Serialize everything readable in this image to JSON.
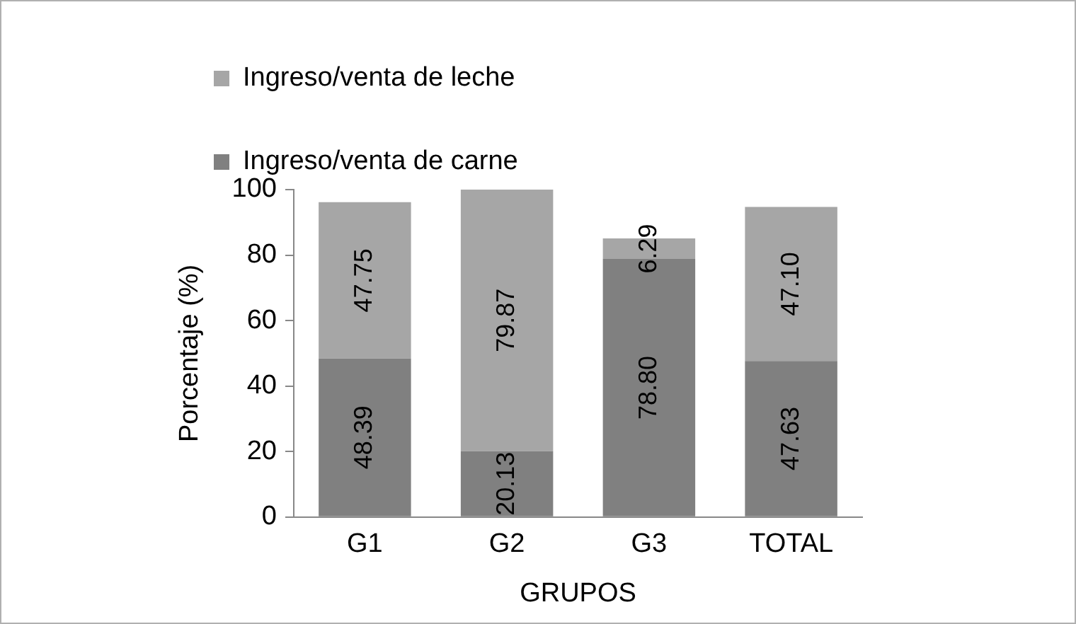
{
  "chart_data": {
    "type": "bar",
    "stacked": true,
    "xlabel": "GRUPOS",
    "ylabel": "Porcentaje (%)",
    "categories": [
      "G1",
      "G2",
      "G3",
      "TOTAL"
    ],
    "ylim": [
      0,
      100
    ],
    "yticks": [
      0,
      20,
      40,
      60,
      80,
      100
    ],
    "grid": false,
    "legend": "top",
    "series": [
      {
        "name": "Ingreso/venta de carne",
        "color": "#808080",
        "values": [
          48.39,
          20.13,
          78.8,
          47.63
        ],
        "value_labels": [
          "48.39",
          "20.13",
          "78.80",
          "47.63"
        ]
      },
      {
        "name": "Ingreso/venta de leche",
        "color": "#a6a6a6",
        "values": [
          47.75,
          79.87,
          6.29,
          47.1
        ],
        "value_labels": [
          "47.75",
          "79.87",
          "6.29",
          "47.10"
        ]
      }
    ]
  }
}
